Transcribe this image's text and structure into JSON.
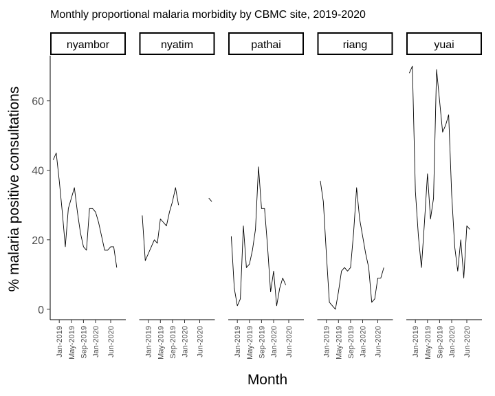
{
  "chart_data": {
    "type": "line",
    "title": "Monthly proportional malaria morbidity by CBMC site, 2019-2020",
    "xlabel": "Month",
    "ylabel": "% malaria positive consultations",
    "xlim": [
      "2018-10",
      "2020-11"
    ],
    "ylim": [
      -3,
      73
    ],
    "yticks": [
      0,
      20,
      40,
      60
    ],
    "xticks": [
      {
        "date": "2019-01",
        "label": "Jan-2019"
      },
      {
        "date": "2019-05",
        "label": "May-2019"
      },
      {
        "date": "2019-09",
        "label": "Sep-2019"
      },
      {
        "date": "2020-01",
        "label": "Jan-2020"
      },
      {
        "date": "2020-06",
        "label": "Jun-2020"
      }
    ],
    "grid": false,
    "panels": [
      {
        "name": "nyambor",
        "points": [
          [
            "2018-11",
            43
          ],
          [
            "2018-12",
            45
          ],
          [
            "2019-01",
            37
          ],
          [
            "2019-02",
            28
          ],
          [
            "2019-03",
            18
          ],
          [
            "2019-04",
            29
          ],
          [
            "2019-05",
            32
          ],
          [
            "2019-06",
            35
          ],
          [
            "2019-07",
            28
          ],
          [
            "2019-08",
            22
          ],
          [
            "2019-09",
            18
          ],
          [
            "2019-10",
            17
          ],
          [
            "2019-11",
            29
          ],
          [
            "2019-12",
            29
          ],
          [
            "2020-01",
            28
          ],
          [
            "2020-02",
            25
          ],
          [
            "2020-03",
            21
          ],
          [
            "2020-04",
            17
          ],
          [
            "2020-05",
            17
          ],
          [
            "2020-06",
            18
          ],
          [
            "2020-07",
            18
          ],
          [
            "2020-08",
            12
          ]
        ]
      },
      {
        "name": "nyatim",
        "segments": [
          [
            [
              "2018-11",
              27
            ],
            [
              "2018-12",
              14
            ],
            [
              "2019-01",
              16
            ],
            [
              "2019-02",
              18
            ],
            [
              "2019-03",
              20
            ],
            [
              "2019-04",
              19
            ],
            [
              "2019-05",
              26
            ],
            [
              "2019-06",
              25
            ],
            [
              "2019-07",
              24
            ],
            [
              "2019-08",
              28
            ],
            [
              "2019-09",
              31
            ],
            [
              "2019-10",
              35
            ],
            [
              "2019-11",
              30
            ]
          ],
          [
            [
              "2020-09",
              32
            ],
            [
              "2020-10",
              31
            ]
          ]
        ]
      },
      {
        "name": "pathai",
        "points": [
          [
            "2018-11",
            21
          ],
          [
            "2018-12",
            6
          ],
          [
            "2019-01",
            1
          ],
          [
            "2019-02",
            3
          ],
          [
            "2019-03",
            24
          ],
          [
            "2019-04",
            12
          ],
          [
            "2019-05",
            13
          ],
          [
            "2019-06",
            17
          ],
          [
            "2019-07",
            23
          ],
          [
            "2019-08",
            41
          ],
          [
            "2019-09",
            29
          ],
          [
            "2019-10",
            29
          ],
          [
            "2019-11",
            18
          ],
          [
            "2019-12",
            5
          ],
          [
            "2020-01",
            11
          ],
          [
            "2020-02",
            1
          ],
          [
            "2020-03",
            6
          ],
          [
            "2020-04",
            9
          ],
          [
            "2020-05",
            7
          ]
        ]
      },
      {
        "name": "riang",
        "points": [
          [
            "2018-11",
            37
          ],
          [
            "2018-12",
            31
          ],
          [
            "2019-01",
            16
          ],
          [
            "2019-02",
            2
          ],
          [
            "2019-03",
            1
          ],
          [
            "2019-04",
            0
          ],
          [
            "2019-05",
            5
          ],
          [
            "2019-06",
            11
          ],
          [
            "2019-07",
            12
          ],
          [
            "2019-08",
            11
          ],
          [
            "2019-09",
            12
          ],
          [
            "2019-10",
            22
          ],
          [
            "2019-11",
            35
          ],
          [
            "2019-12",
            26
          ],
          [
            "2020-01",
            21
          ],
          [
            "2020-02",
            16
          ],
          [
            "2020-03",
            12
          ],
          [
            "2020-04",
            2
          ],
          [
            "2020-05",
            3
          ],
          [
            "2020-06",
            9
          ],
          [
            "2020-07",
            9
          ],
          [
            "2020-08",
            12
          ]
        ]
      },
      {
        "name": "yuai",
        "points": [
          [
            "2018-11",
            68
          ],
          [
            "2018-12",
            70
          ],
          [
            "2019-01",
            34
          ],
          [
            "2019-02",
            21
          ],
          [
            "2019-03",
            12
          ],
          [
            "2019-04",
            25
          ],
          [
            "2019-05",
            39
          ],
          [
            "2019-06",
            26
          ],
          [
            "2019-07",
            32
          ],
          [
            "2019-08",
            69
          ],
          [
            "2019-09",
            60
          ],
          [
            "2019-10",
            51
          ],
          [
            "2019-11",
            53
          ],
          [
            "2019-12",
            56
          ],
          [
            "2020-01",
            33
          ],
          [
            "2020-02",
            18
          ],
          [
            "2020-03",
            11
          ],
          [
            "2020-04",
            20
          ],
          [
            "2020-05",
            9
          ],
          [
            "2020-06",
            24
          ],
          [
            "2020-07",
            23
          ]
        ]
      }
    ]
  }
}
